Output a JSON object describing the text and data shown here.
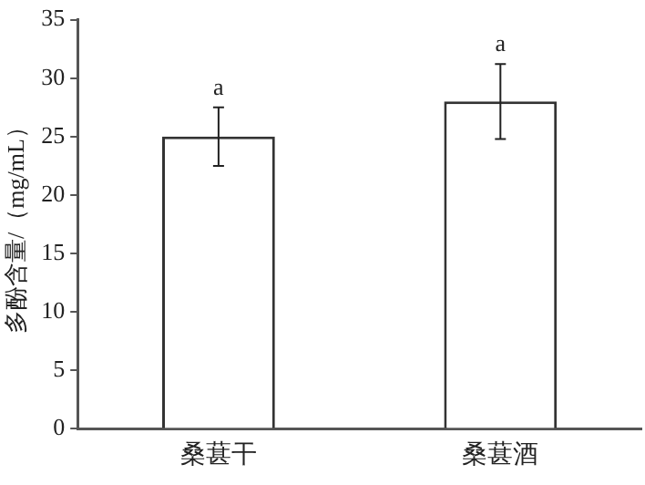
{
  "chart_data": {
    "type": "bar",
    "ylabel": "多酚含量/（mg/mL）",
    "categories": [
      "桑葚干",
      "桑葚酒"
    ],
    "values": [
      25,
      28
    ],
    "color": "#ffffff",
    "errors": [
      2.5,
      [
        24.8,
        31.2
      ]
    ],
    "ylim": [
      0,
      35
    ],
    "yticks": [
      0,
      5,
      10,
      15,
      20,
      25,
      30,
      35
    ],
    "grid": false,
    "annotations": [
      {
        "text": "a",
        "x": "桑葚干",
        "y": 27.5
      },
      {
        "text": "a",
        "x": "桑葚酒",
        "y": 31.2
      }
    ]
  }
}
